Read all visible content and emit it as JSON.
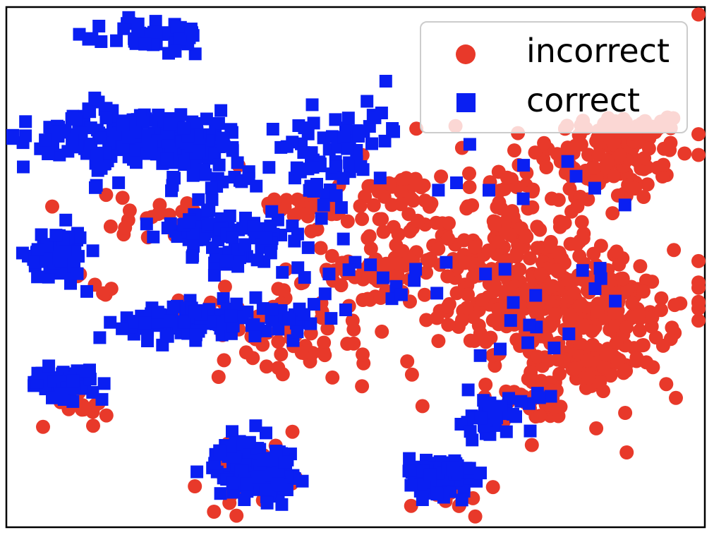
{
  "chart_data": {
    "type": "scatter",
    "title": "",
    "xlabel": "",
    "ylabel": "",
    "axes_ticks": "none",
    "grid": false,
    "legend": {
      "placement": "top-right"
    },
    "series": [
      {
        "name": "incorrect",
        "marker": "circle",
        "color": "#e8392a",
        "clusters": [
          {
            "cx": 95,
            "cy": 33,
            "sx": 10,
            "sy": 2,
            "n": 45
          },
          {
            "cx": 92,
            "cy": 25,
            "sx": 12,
            "sy": 6,
            "n": 90
          },
          {
            "cx": 22,
            "cy": 17,
            "sx": 8,
            "sy": 2,
            "n": 15
          },
          {
            "cx": -6,
            "cy": 12,
            "sx": 7,
            "sy": 2,
            "n": 25
          },
          {
            "cx": 20,
            "cy": -5,
            "sx": 5,
            "sy": 2,
            "n": 20
          },
          {
            "cx": 58,
            "cy": 1,
            "sx": 14,
            "sy": 11,
            "n": 160
          },
          {
            "cx": 14,
            "cy": -2,
            "sx": 15,
            "sy": 11,
            "n": 60
          },
          {
            "cx": 66,
            "cy": -14,
            "sx": 13,
            "sy": 6,
            "n": 110
          },
          {
            "cx": 83,
            "cy": -18,
            "sx": 14,
            "sy": 7,
            "n": 90
          },
          {
            "cx": 93,
            "cy": -14,
            "sx": 6,
            "sy": 4,
            "n": 45
          },
          {
            "cx": 84,
            "cy": -32,
            "sx": 8,
            "sy": 4,
            "n": 60
          },
          {
            "cx": 69,
            "cy": -40,
            "sx": 7,
            "sy": 3,
            "n": 25
          },
          {
            "cx": -78,
            "cy": -42,
            "sx": 5,
            "sy": 3,
            "n": 15
          },
          {
            "cx": -22,
            "cy": -62,
            "sx": 8,
            "sy": 4,
            "n": 25
          },
          {
            "cx": -10,
            "cy": -28,
            "sx": 10,
            "sy": 4,
            "n": 30
          },
          {
            "cx": -55,
            "cy": 8,
            "sx": 12,
            "sy": 4,
            "n": 20
          },
          {
            "cx": -32,
            "cy": -15,
            "sx": 20,
            "sy": 5,
            "n": 20
          },
          {
            "cx": -72,
            "cy": -10,
            "sx": 3,
            "sy": 3,
            "n": 6
          },
          {
            "cx": 40,
            "cy": -66,
            "sx": 6,
            "sy": 3,
            "n": 15
          },
          {
            "cx": 60,
            "cy": -10,
            "sx": 38,
            "sy": 25,
            "n": 90
          }
        ]
      },
      {
        "name": "correct",
        "marker": "square",
        "color": "#0a1ff2",
        "clusters": [
          {
            "cx": -52,
            "cy": 58,
            "sx": 8,
            "sy": 2.5,
            "n": 50
          },
          {
            "cx": -58,
            "cy": 31,
            "sx": 18,
            "sy": 3.5,
            "n": 170
          },
          {
            "cx": -43,
            "cy": 29,
            "sx": 7,
            "sy": 2.5,
            "n": 45
          },
          {
            "cx": -33,
            "cy": 20,
            "sx": 8,
            "sy": 3,
            "n": 25
          },
          {
            "cx": -2,
            "cy": 28,
            "sx": 6,
            "sy": 5,
            "n": 30
          },
          {
            "cx": 13,
            "cy": 33,
            "sx": 6,
            "sy": 5,
            "n": 25
          },
          {
            "cx": 0,
            "cy": 16,
            "sx": 6,
            "sy": 5,
            "n": 15
          },
          {
            "cx": -38,
            "cy": 6,
            "sx": 8,
            "sy": 2,
            "n": 55
          },
          {
            "cx": -20,
            "cy": 5,
            "sx": 10,
            "sy": 2,
            "n": 20
          },
          {
            "cx": -31,
            "cy": -2,
            "sx": 8,
            "sy": 2,
            "n": 25
          },
          {
            "cx": -84,
            "cy": -1,
            "sx": 4.5,
            "sy": 3.5,
            "n": 70
          },
          {
            "cx": -38,
            "cy": -19,
            "sx": 11,
            "sy": 2.5,
            "n": 110
          },
          {
            "cx": -82,
            "cy": -36,
            "sx": 5,
            "sy": 2,
            "n": 55
          },
          {
            "cx": -22,
            "cy": -59,
            "sx": 6,
            "sy": 4,
            "n": 130
          },
          {
            "cx": 37,
            "cy": -61,
            "sx": 5,
            "sy": 2.5,
            "n": 110
          },
          {
            "cx": 50,
            "cy": -46,
            "sx": 4,
            "sy": 3,
            "n": 25
          },
          {
            "cx": 60,
            "cy": -43,
            "sx": 4,
            "sy": 3,
            "n": 15
          },
          {
            "cx": 22,
            "cy": -6,
            "sx": 10,
            "sy": 4,
            "n": 6
          },
          {
            "cx": 40,
            "cy": -8,
            "sx": 12,
            "sy": 5,
            "n": 8
          },
          {
            "cx": 65,
            "cy": -24,
            "sx": 10,
            "sy": 3,
            "n": 8
          },
          {
            "cx": 90,
            "cy": -8,
            "sx": 10,
            "sy": 5,
            "n": 6
          },
          {
            "cx": 60,
            "cy": 20,
            "sx": 15,
            "sy": 10,
            "n": 10
          },
          {
            "cx": -10,
            "cy": 0,
            "sx": 10,
            "sy": 6,
            "n": 12
          },
          {
            "cx": -5,
            "cy": -17,
            "sx": 6,
            "sy": 3,
            "n": 15
          },
          {
            "cx": -70,
            "cy": 22,
            "sx": 4,
            "sy": 3,
            "n": 10
          },
          {
            "cx": -72,
            "cy": 38,
            "sx": 4,
            "sy": 2,
            "n": 6
          },
          {
            "cx": -62,
            "cy": -19,
            "sx": 4,
            "sy": 2,
            "n": 8
          },
          {
            "cx": -77,
            "cy": -37,
            "sx": 4,
            "sy": 2,
            "n": 6
          }
        ]
      }
    ],
    "xlim": [
      -100,
      120
    ],
    "ylim": [
      -75,
      66
    ]
  }
}
